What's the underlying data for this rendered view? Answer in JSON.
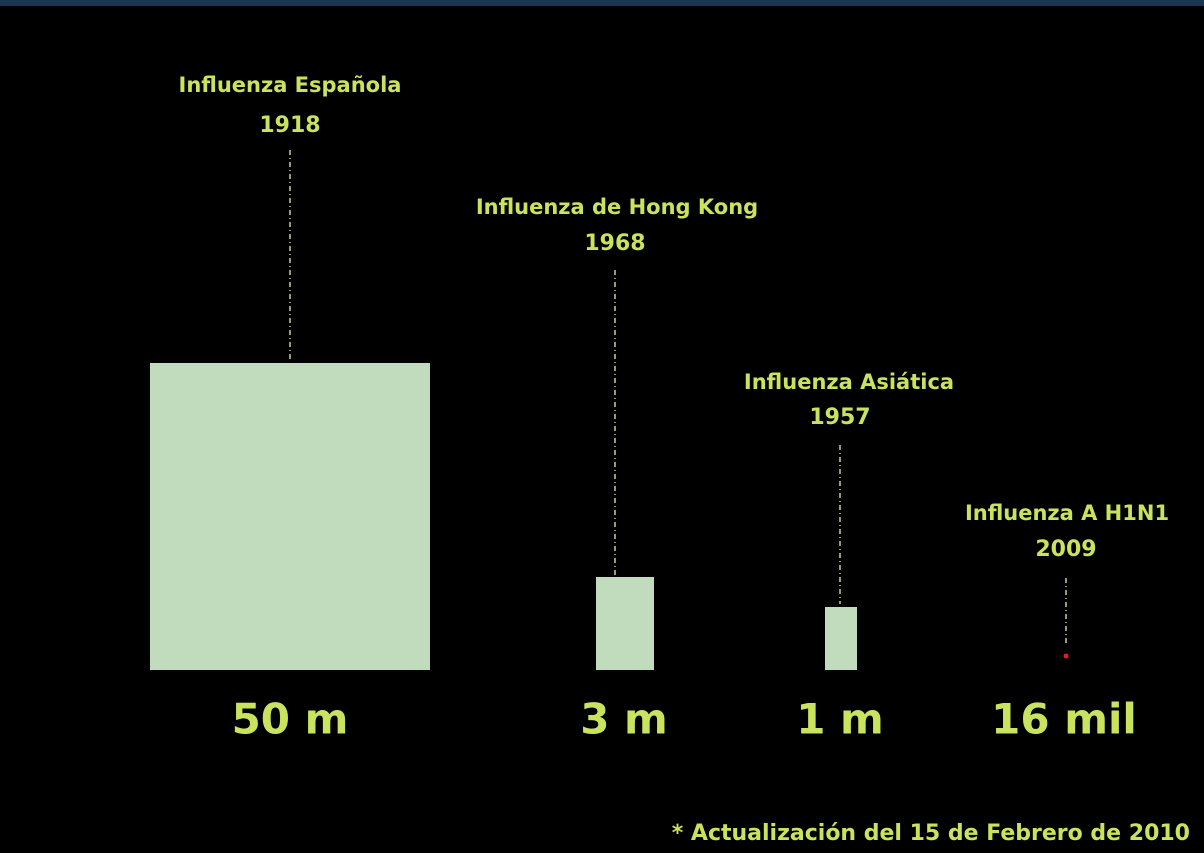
{
  "items": [
    {
      "name": "Influenza Española",
      "year": "1918",
      "value_label": "50 m"
    },
    {
      "name": "Influenza de Hong Kong",
      "year": "1968",
      "value_label": "3 m"
    },
    {
      "name": "Influenza Asiática",
      "year": "1957",
      "value_label": "1 m"
    },
    {
      "name": "Influenza A H1N1",
      "year": "2009",
      "value_label": "16 mil"
    }
  ],
  "footnote": "* Actualización del 15 de Febrero de 2010"
}
